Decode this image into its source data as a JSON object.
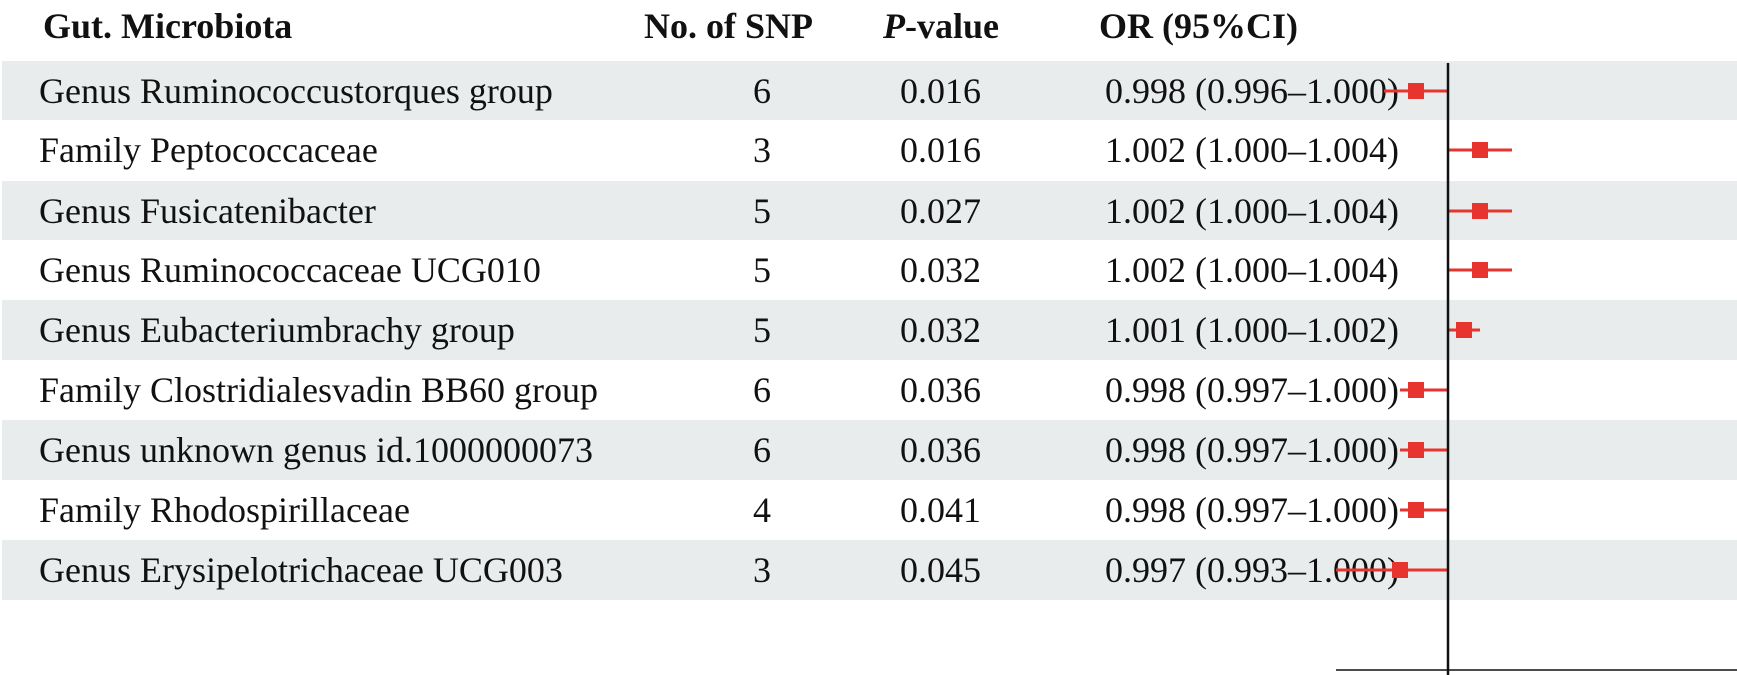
{
  "chart_data": {
    "type": "forest",
    "columns": {
      "name": "Gut. Microbiota",
      "snp": "No. of SNP",
      "p_italic": "P",
      "p_rest": "-value",
      "or": "OR (95%CI)"
    },
    "rows": [
      {
        "name": "Genus Ruminococcustorques group",
        "snp": "6",
        "p": "0.016",
        "or_text": "0.998 (0.996–1.000)",
        "or": 0.998,
        "lo": 0.996,
        "hi": 1.0
      },
      {
        "name": "Family Peptococcaceae",
        "snp": "3",
        "p": "0.016",
        "or_text": "1.002 (1.000–1.004)",
        "or": 1.002,
        "lo": 1.0,
        "hi": 1.004
      },
      {
        "name": "Genus Fusicatenibacter",
        "snp": "5",
        "p": "0.027",
        "or_text": "1.002 (1.000–1.004)",
        "or": 1.002,
        "lo": 1.0,
        "hi": 1.004
      },
      {
        "name": "Genus Ruminococcaceae UCG010",
        "snp": "5",
        "p": "0.032",
        "or_text": "1.002 (1.000–1.004)",
        "or": 1.002,
        "lo": 1.0,
        "hi": 1.004
      },
      {
        "name": "Genus Eubacteriumbrachy group",
        "snp": "5",
        "p": "0.032",
        "or_text": "1.001 (1.000–1.002)",
        "or": 1.001,
        "lo": 1.0,
        "hi": 1.002
      },
      {
        "name": "Family Clostridialesvadin BB60 group",
        "snp": "6",
        "p": "0.036",
        "or_text": "0.998 (0.997–1.000)",
        "or": 0.998,
        "lo": 0.997,
        "hi": 1.0
      },
      {
        "name": "Genus unknown genus id.1000000073",
        "snp": "6",
        "p": "0.036",
        "or_text": "0.998 (0.997–1.000)",
        "or": 0.998,
        "lo": 0.997,
        "hi": 1.0
      },
      {
        "name": "Family Rhodospirillaceae",
        "snp": "4",
        "p": "0.041",
        "or_text": "0.998 (0.997–1.000)",
        "or": 0.998,
        "lo": 0.997,
        "hi": 1.0
      },
      {
        "name": "Genus Erysipelotrichaceae UCG003",
        "snp": "3",
        "p": "0.045",
        "or_text": "0.997 (0.993–1.000)",
        "or": 0.997,
        "lo": 0.993,
        "hi": 1.0
      }
    ],
    "reference_line": 1.0,
    "xlim": [
      0.993,
      1.0045
    ]
  },
  "colors": {
    "marker": "#e8342e",
    "ci_line": "#e8342e",
    "row_shade": "#e8ecec",
    "reference_line": "#111111",
    "text": "#111111"
  }
}
